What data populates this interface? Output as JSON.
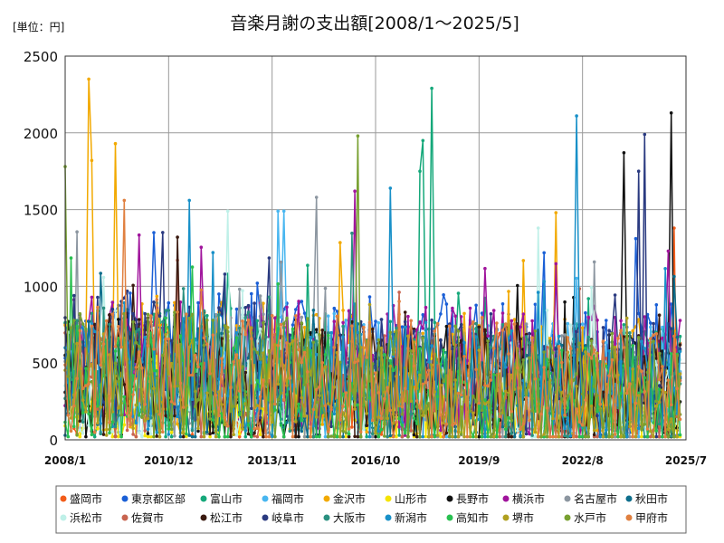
{
  "chart_data": {
    "type": "line",
    "title": "音楽月謝の支出額[2008/1～2025/5]",
    "unit_label": "[単位：円]",
    "ylim": [
      0,
      2500
    ],
    "yticks": [
      0,
      500,
      1000,
      1500,
      2000,
      2500
    ],
    "ytick_labels": [
      "0",
      "500",
      "1000",
      "1500",
      "2000",
      "2500"
    ],
    "xlim": [
      "2008/1",
      "2025/7"
    ],
    "xticks": [
      {
        "label": "2008/1",
        "month_index": 0
      },
      {
        "label": "2010/12",
        "month_index": 35
      },
      {
        "label": "2013/11",
        "month_index": 70
      },
      {
        "label": "2016/10",
        "month_index": 105
      },
      {
        "label": "2019/9",
        "month_index": 140
      },
      {
        "label": "2022/8",
        "month_index": 175
      },
      {
        "label": "2025/7",
        "month_index": 210
      }
    ],
    "grid": true,
    "legend_position": "bottom",
    "n_points": 209,
    "series": [
      {
        "name": "盛岡市",
        "color": "#f25c19",
        "base": 420,
        "amp": 380,
        "seed": 11,
        "peaks": [
          [
            206,
            1380
          ]
        ]
      },
      {
        "name": "東京都区部",
        "color": "#1a5fd6",
        "base": 620,
        "amp": 420,
        "seed": 12,
        "peaks": [
          [
            30,
            1350
          ],
          [
            200,
            880
          ]
        ]
      },
      {
        "name": "富山市",
        "color": "#15a87a",
        "base": 450,
        "amp": 450,
        "seed": 13,
        "peaks": [
          [
            124,
            2290
          ],
          [
            121,
            1950
          ],
          [
            120,
            1750
          ]
        ]
      },
      {
        "name": "福岡市",
        "color": "#48b6f0",
        "base": 480,
        "amp": 420,
        "seed": 14,
        "peaks": [
          [
            72,
            1490
          ],
          [
            74,
            1490
          ]
        ]
      },
      {
        "name": "金沢市",
        "color": "#f2a900",
        "base": 520,
        "amp": 450,
        "seed": 15,
        "peaks": [
          [
            8,
            2350
          ],
          [
            9,
            1820
          ],
          [
            17,
            1930
          ],
          [
            166,
            1480
          ]
        ]
      },
      {
        "name": "山形市",
        "color": "#f5e400",
        "base": 280,
        "amp": 320,
        "seed": 16,
        "peaks": []
      },
      {
        "name": "長野市",
        "color": "#111111",
        "base": 420,
        "amp": 420,
        "seed": 17,
        "peaks": [
          [
            205,
            2130
          ],
          [
            189,
            1870
          ]
        ]
      },
      {
        "name": "横浜市",
        "color": "#a0149c",
        "base": 560,
        "amp": 430,
        "seed": 18,
        "peaks": [
          [
            98,
            1620
          ],
          [
            204,
            1230
          ]
        ]
      },
      {
        "name": "名古屋市",
        "color": "#8c96a0",
        "base": 460,
        "amp": 420,
        "seed": 19,
        "peaks": [
          [
            85,
            1580
          ]
        ]
      },
      {
        "name": "秋田市",
        "color": "#0e6e8c",
        "base": 400,
        "amp": 380,
        "seed": 20,
        "peaks": []
      },
      {
        "name": "浜松市",
        "color": "#bff0e8",
        "base": 380,
        "amp": 380,
        "seed": 21,
        "peaks": [
          [
            55,
            1490
          ],
          [
            160,
            1380
          ]
        ]
      },
      {
        "name": "佐賀市",
        "color": "#c86450",
        "base": 380,
        "amp": 380,
        "seed": 22,
        "peaks": []
      },
      {
        "name": "松江市",
        "color": "#3a1a10",
        "base": 420,
        "amp": 420,
        "seed": 23,
        "peaks": [
          [
            38,
            1320
          ]
        ]
      },
      {
        "name": "岐阜市",
        "color": "#2a3a80",
        "base": 520,
        "amp": 430,
        "seed": 24,
        "peaks": [
          [
            196,
            1990
          ],
          [
            194,
            1750
          ]
        ]
      },
      {
        "name": "大阪市",
        "color": "#2a9080",
        "base": 460,
        "amp": 420,
        "seed": 25,
        "peaks": []
      },
      {
        "name": "新潟市",
        "color": "#1890c8",
        "base": 420,
        "amp": 400,
        "seed": 26,
        "peaks": [
          [
            173,
            2110
          ],
          [
            42,
            1560
          ],
          [
            110,
            1640
          ]
        ]
      },
      {
        "name": "高知市",
        "color": "#28c050",
        "base": 360,
        "amp": 380,
        "seed": 27,
        "peaks": []
      },
      {
        "name": "堺市",
        "color": "#b0a020",
        "base": 360,
        "amp": 360,
        "seed": 28,
        "peaks": []
      },
      {
        "name": "水戸市",
        "color": "#78a030",
        "base": 440,
        "amp": 420,
        "seed": 29,
        "peaks": [
          [
            99,
            1980
          ],
          [
            0,
            1780
          ]
        ]
      },
      {
        "name": "甲府市",
        "color": "#e08040",
        "base": 460,
        "amp": 420,
        "seed": 30,
        "peaks": [
          [
            20,
            1560
          ]
        ]
      }
    ]
  }
}
